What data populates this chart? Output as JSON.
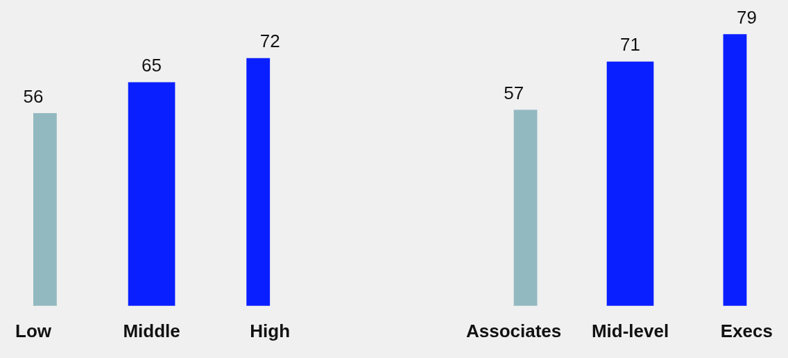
{
  "chart_data": [
    {
      "type": "bar",
      "categories": [
        "Low",
        "Middle",
        "High"
      ],
      "values": [
        56,
        65,
        72
      ],
      "colors": [
        "#93b9c0",
        "#0a1fff",
        "#0a1fff"
      ],
      "data_labels": true,
      "ylim": [
        0,
        89
      ],
      "tick_labels": "x",
      "grid": false,
      "legend": false
    },
    {
      "type": "bar",
      "categories": [
        "Associates",
        "Mid-level",
        "Execs"
      ],
      "values": [
        57,
        71,
        79
      ],
      "colors": [
        "#93b9c0",
        "#0a1fff",
        "#0a1fff"
      ],
      "data_labels": true,
      "ylim": [
        0,
        89
      ],
      "tick_labels": "x",
      "grid": false,
      "legend": false
    }
  ]
}
